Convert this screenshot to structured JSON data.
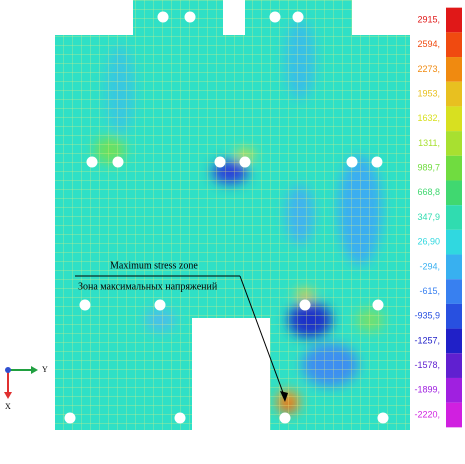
{
  "legend": {
    "labels": [
      "2915,",
      "2594,",
      "2273,",
      "1953,",
      "1632,",
      "1311,",
      "989,7",
      "668,8",
      "347,9",
      "26,90",
      "-294,",
      "-615,",
      "-935,9",
      "-1257,",
      "-1578,",
      "-1899,",
      "-2220,"
    ]
  },
  "annotation": {
    "title_en": "Maximum stress zone",
    "title_ru": "Зона максимальных напряжений"
  },
  "axes": {
    "y": "Y",
    "x": "X"
  }
}
